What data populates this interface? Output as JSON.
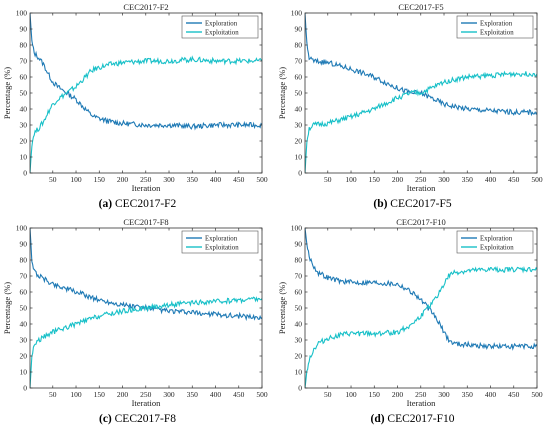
{
  "colors": {
    "exploration": "#1f7ab5",
    "exploitation": "#18c0c8"
  },
  "chart_data": [
    {
      "type": "line",
      "title": "CEC2017-F2",
      "caption_letter": "(a)",
      "caption_text": "CEC2017-F2",
      "xlabel": "Iteration",
      "ylabel": "Percentage (%)",
      "xlim": [
        1,
        500
      ],
      "ylim": [
        0,
        100
      ],
      "xticks": [
        50,
        100,
        150,
        200,
        250,
        300,
        350,
        400,
        450,
        500
      ],
      "yticks": [
        0,
        10,
        20,
        30,
        40,
        50,
        60,
        70,
        80,
        90,
        100
      ],
      "legend_position": "top-right",
      "series": [
        {
          "name": "Exploration",
          "x": [
            1,
            5,
            10,
            20,
            30,
            40,
            50,
            60,
            70,
            80,
            90,
            100,
            110,
            120,
            130,
            140,
            150,
            175,
            200,
            250,
            300,
            350,
            400,
            450,
            500
          ],
          "y": [
            100,
            82,
            75,
            72,
            68,
            62,
            57,
            54,
            52,
            50,
            48,
            46,
            43,
            40,
            37,
            35,
            34,
            32,
            31,
            30,
            30,
            29,
            30,
            30,
            30
          ]
        },
        {
          "name": "Exploitation",
          "x": [
            1,
            5,
            10,
            20,
            30,
            40,
            50,
            60,
            70,
            80,
            90,
            100,
            110,
            120,
            130,
            140,
            150,
            175,
            200,
            250,
            300,
            350,
            400,
            450,
            500
          ],
          "y": [
            0,
            18,
            25,
            28,
            32,
            38,
            43,
            46,
            48,
            50,
            52,
            54,
            57,
            60,
            63,
            65,
            66,
            68,
            69,
            70,
            70,
            71,
            70,
            70,
            70
          ]
        }
      ]
    },
    {
      "type": "line",
      "title": "CEC2017-F5",
      "caption_letter": "(b)",
      "caption_text": "CEC2017-F5",
      "xlabel": "Iteration",
      "ylabel": "Percentage (%)",
      "xlim": [
        1,
        500
      ],
      "ylim": [
        0,
        100
      ],
      "xticks": [
        50,
        100,
        150,
        200,
        250,
        300,
        350,
        400,
        450,
        500
      ],
      "yticks": [
        0,
        10,
        20,
        30,
        40,
        50,
        60,
        70,
        80,
        90,
        100
      ],
      "legend_position": "top-right",
      "series": [
        {
          "name": "Exploration",
          "x": [
            1,
            5,
            10,
            20,
            50,
            100,
            150,
            200,
            230,
            250,
            280,
            300,
            350,
            400,
            450,
            500
          ],
          "y": [
            100,
            80,
            72,
            70,
            69,
            65,
            60,
            53,
            50,
            50,
            46,
            43,
            40,
            39,
            38,
            38
          ]
        },
        {
          "name": "Exploitation",
          "x": [
            1,
            5,
            10,
            20,
            50,
            100,
            150,
            200,
            230,
            250,
            280,
            300,
            350,
            400,
            450,
            500
          ],
          "y": [
            0,
            20,
            28,
            30,
            31,
            35,
            40,
            47,
            50,
            50,
            54,
            57,
            60,
            61,
            62,
            62
          ]
        }
      ]
    },
    {
      "type": "line",
      "title": "CEC2017-F8",
      "caption_letter": "(c)",
      "caption_text": "CEC2017-F8",
      "xlabel": "Iteration",
      "ylabel": "Percentage (%)",
      "xlim": [
        1,
        500
      ],
      "ylim": [
        0,
        100
      ],
      "xticks": [
        50,
        100,
        150,
        200,
        250,
        300,
        350,
        400,
        450,
        500
      ],
      "yticks": [
        0,
        10,
        20,
        30,
        40,
        50,
        60,
        70,
        80,
        90,
        100
      ],
      "legend_position": "top-right",
      "series": [
        {
          "name": "Exploration",
          "x": [
            1,
            5,
            10,
            20,
            50,
            100,
            150,
            200,
            250,
            300,
            350,
            400,
            450,
            500
          ],
          "y": [
            100,
            80,
            73,
            70,
            65,
            60,
            55,
            52,
            50,
            48,
            47,
            46,
            45,
            44
          ]
        },
        {
          "name": "Exploitation",
          "x": [
            1,
            5,
            10,
            20,
            50,
            100,
            150,
            200,
            250,
            300,
            350,
            400,
            450,
            500
          ],
          "y": [
            0,
            20,
            27,
            30,
            35,
            40,
            45,
            48,
            50,
            52,
            53,
            54,
            55,
            56
          ]
        }
      ]
    },
    {
      "type": "line",
      "title": "CEC2017-F10",
      "caption_letter": "(d)",
      "caption_text": "CEC2017-F10",
      "xlabel": "Iteration",
      "ylabel": "Percentage (%)",
      "xlim": [
        1,
        500
      ],
      "ylim": [
        0,
        100
      ],
      "xticks": [
        50,
        100,
        150,
        200,
        250,
        300,
        350,
        400,
        450,
        500
      ],
      "yticks": [
        0,
        10,
        20,
        30,
        40,
        50,
        60,
        70,
        80,
        90,
        100
      ],
      "legend_position": "top-right",
      "series": [
        {
          "name": "Exploration",
          "x": [
            1,
            5,
            10,
            20,
            30,
            50,
            75,
            100,
            150,
            200,
            220,
            240,
            260,
            280,
            300,
            310,
            320,
            350,
            400,
            450,
            500
          ],
          "y": [
            100,
            90,
            82,
            76,
            72,
            69,
            67,
            66,
            66,
            65,
            62,
            58,
            52,
            45,
            35,
            30,
            28,
            27,
            26,
            26,
            26
          ]
        },
        {
          "name": "Exploitation",
          "x": [
            1,
            5,
            10,
            20,
            30,
            50,
            75,
            100,
            150,
            200,
            220,
            240,
            260,
            280,
            300,
            310,
            320,
            350,
            400,
            450,
            500
          ],
          "y": [
            0,
            10,
            18,
            24,
            28,
            31,
            33,
            34,
            34,
            35,
            38,
            42,
            48,
            55,
            65,
            70,
            72,
            73,
            74,
            74,
            74
          ]
        }
      ]
    }
  ]
}
